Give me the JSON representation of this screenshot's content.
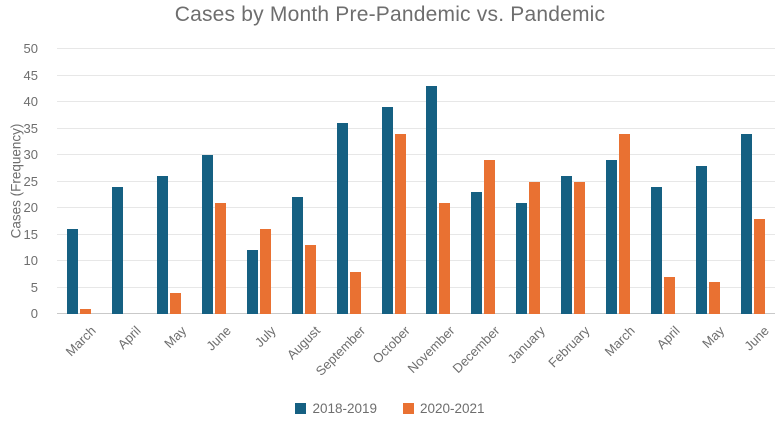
{
  "page": {
    "background_color": "#ffffff",
    "text_color": "#6e6e6e",
    "gridline_color": "#e7e7e7",
    "axis_line_color": "#c9c9c9"
  },
  "chart_data": {
    "type": "bar",
    "title": "Cases by Month Pre-Pandemic vs. Pandemic",
    "xlabel": "",
    "ylabel": "Cases (Frequency)",
    "categories": [
      "March",
      "April",
      "May",
      "June",
      "July",
      "August",
      "September",
      "October",
      "November",
      "December",
      "January",
      "February",
      "March",
      "April",
      "May",
      "June"
    ],
    "series": [
      {
        "name": "2018-2019",
        "color": "#156082",
        "values": [
          16,
          24,
          26,
          30,
          12,
          22,
          36,
          39,
          43,
          23,
          21,
          26,
          29,
          24,
          28,
          34
        ]
      },
      {
        "name": "2020-2021",
        "color": "#E97132",
        "values": [
          1,
          0,
          4,
          21,
          16,
          13,
          8,
          34,
          21,
          29,
          25,
          25,
          34,
          7,
          6,
          18
        ]
      }
    ],
    "ylim": [
      0,
      50
    ],
    "ytick_step": 5,
    "yticks": [
      0,
      5,
      10,
      15,
      20,
      25,
      30,
      35,
      40,
      45,
      50
    ],
    "grid": true,
    "legend_position": "bottom"
  }
}
